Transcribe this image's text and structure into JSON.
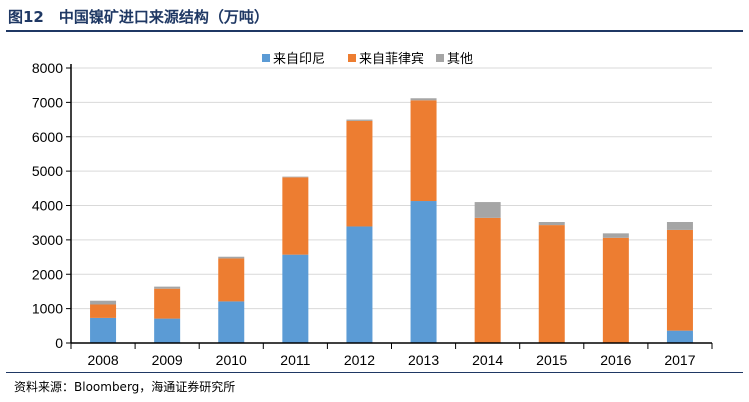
{
  "title": "图12　中国镍矿进口来源结构（万吨）",
  "source": "资料来源：Bloomberg，海通证券研究所",
  "chart_data": {
    "type": "bar",
    "stacked": true,
    "categories": [
      "2008",
      "2009",
      "2010",
      "2011",
      "2012",
      "2013",
      "2014",
      "2015",
      "2016",
      "2017"
    ],
    "series": [
      {
        "name": "来自印尼",
        "color": "#5b9bd5",
        "values": [
          730,
          710,
          1210,
          2570,
          3390,
          4130,
          0,
          0,
          0,
          360
        ]
      },
      {
        "name": "来自菲律宾",
        "color": "#ed7d31",
        "values": [
          390,
          870,
          1250,
          2250,
          3070,
          2930,
          3640,
          3430,
          3060,
          2930
        ]
      },
      {
        "name": "其他",
        "color": "#a5a5a5",
        "values": [
          110,
          60,
          50,
          20,
          40,
          60,
          460,
          90,
          130,
          230
        ]
      }
    ],
    "ylim": [
      0,
      8000
    ],
    "yticks": [
      "0",
      "1000",
      "2000",
      "3000",
      "4000",
      "5000",
      "6000",
      "7000",
      "8000"
    ],
    "legend": "top-center",
    "grid": true
  }
}
